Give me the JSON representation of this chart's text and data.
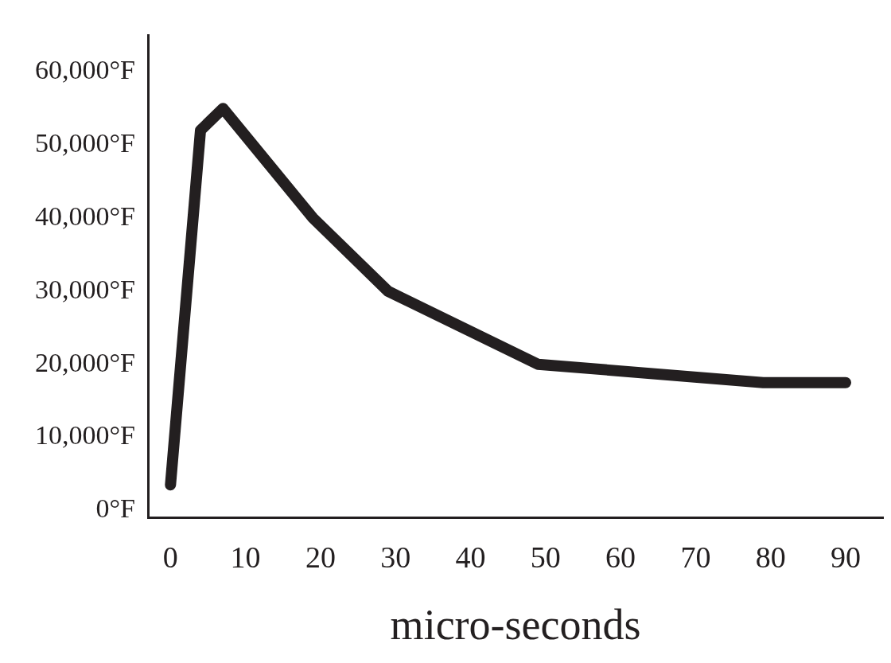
{
  "chart_data": {
    "type": "line",
    "xlabel": "micro-seconds",
    "x": [
      0,
      4,
      7,
      19,
      29,
      49,
      79,
      90
    ],
    "series": [
      {
        "color": "#231f20",
        "values": [
          3500,
          52000,
          55000,
          40000,
          30000,
          20000,
          17500,
          17500
        ]
      }
    ],
    "xlim": [
      -3,
      95
    ],
    "ylim": [
      -1000,
      65000
    ],
    "xticks": [
      0,
      10,
      20,
      30,
      40,
      50,
      60,
      70,
      80,
      90
    ],
    "yticks": [
      {
        "value": 0,
        "label": "0°F"
      },
      {
        "value": 10000,
        "label": "10,000°F"
      },
      {
        "value": 20000,
        "label": "20,000°F"
      },
      {
        "value": 30000,
        "label": "30,000°F"
      },
      {
        "value": 40000,
        "label": "40,000°F"
      },
      {
        "value": 50000,
        "label": "50,000°F"
      },
      {
        "value": 60000,
        "label": "60,000°F"
      }
    ],
    "grid": false,
    "legend": false,
    "marker": "none",
    "line_style": "solid"
  }
}
